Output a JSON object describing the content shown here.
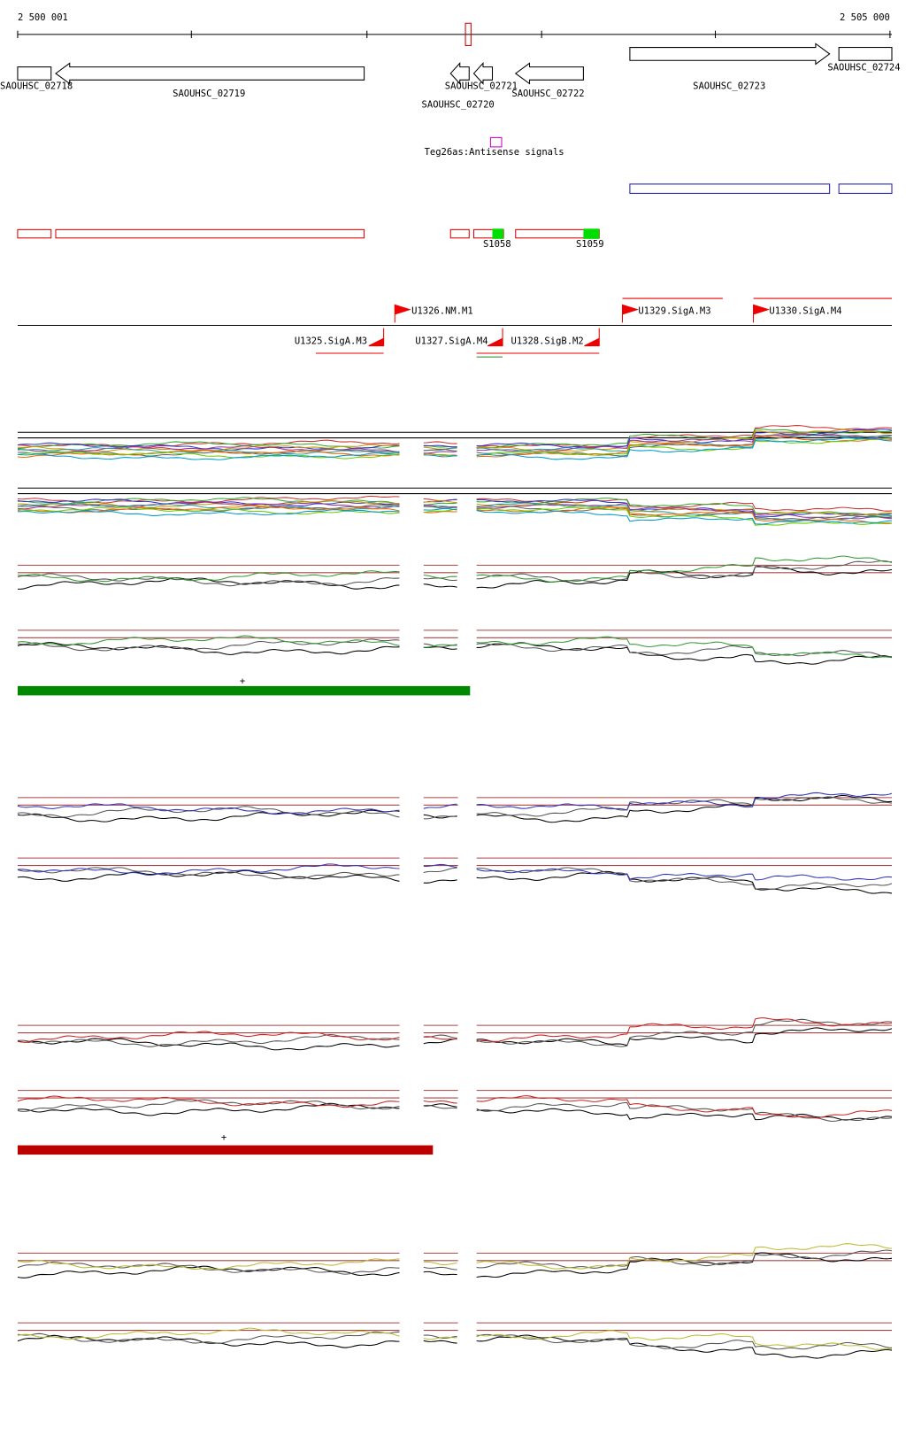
{
  "ruler": {
    "start": "2 500 001",
    "end": "2 505 000"
  },
  "genes": [
    "SAOUHSC_02718",
    "SAOUHSC_02719",
    "SAOUHSC_02720",
    "SAOUHSC_02721",
    "SAOUHSC_02722",
    "SAOUHSC_02723",
    "SAOUHSC_02724"
  ],
  "antisense": "Teg26as:Antisense signals",
  "signals": [
    "S1058",
    "S1059"
  ],
  "promoters": [
    "U1326.NM.M1",
    "U1329.SigA.M3",
    "U1330.SigA.M4",
    "U1325.SigA.M3",
    "U1327.SigA.M4",
    "U1328.SigB.M2"
  ],
  "markers": [
    "+",
    "+"
  ]
}
